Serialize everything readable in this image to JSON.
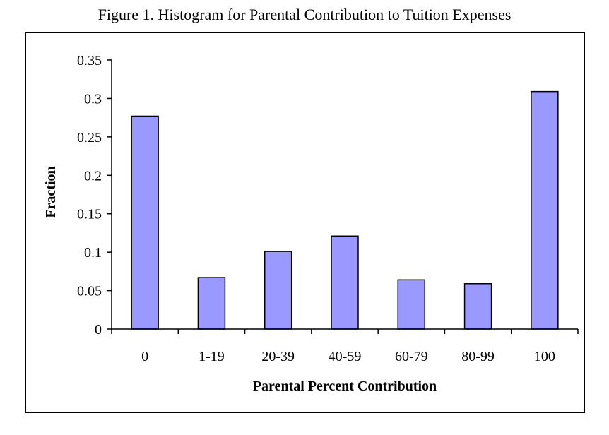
{
  "figure_title": "Figure 1. Histogram for Parental Contribution to Tuition Expenses",
  "chart_data": {
    "type": "bar",
    "categories": [
      "0",
      "1-19",
      "20-39",
      "40-59",
      "60-79",
      "80-99",
      "100"
    ],
    "values": [
      0.277,
      0.067,
      0.101,
      0.121,
      0.064,
      0.059,
      0.309
    ],
    "xlabel": "Parental Percent Contribution",
    "ylabel": "Fraction",
    "ylim": [
      0,
      0.35
    ],
    "yticks": [
      "0",
      "0.05",
      "0.1",
      "0.15",
      "0.2",
      "0.25",
      "0.3",
      "0.35"
    ],
    "grid": false,
    "legend": "none",
    "bar_color": "#9999ff",
    "bar_edge_color": "#000000"
  }
}
